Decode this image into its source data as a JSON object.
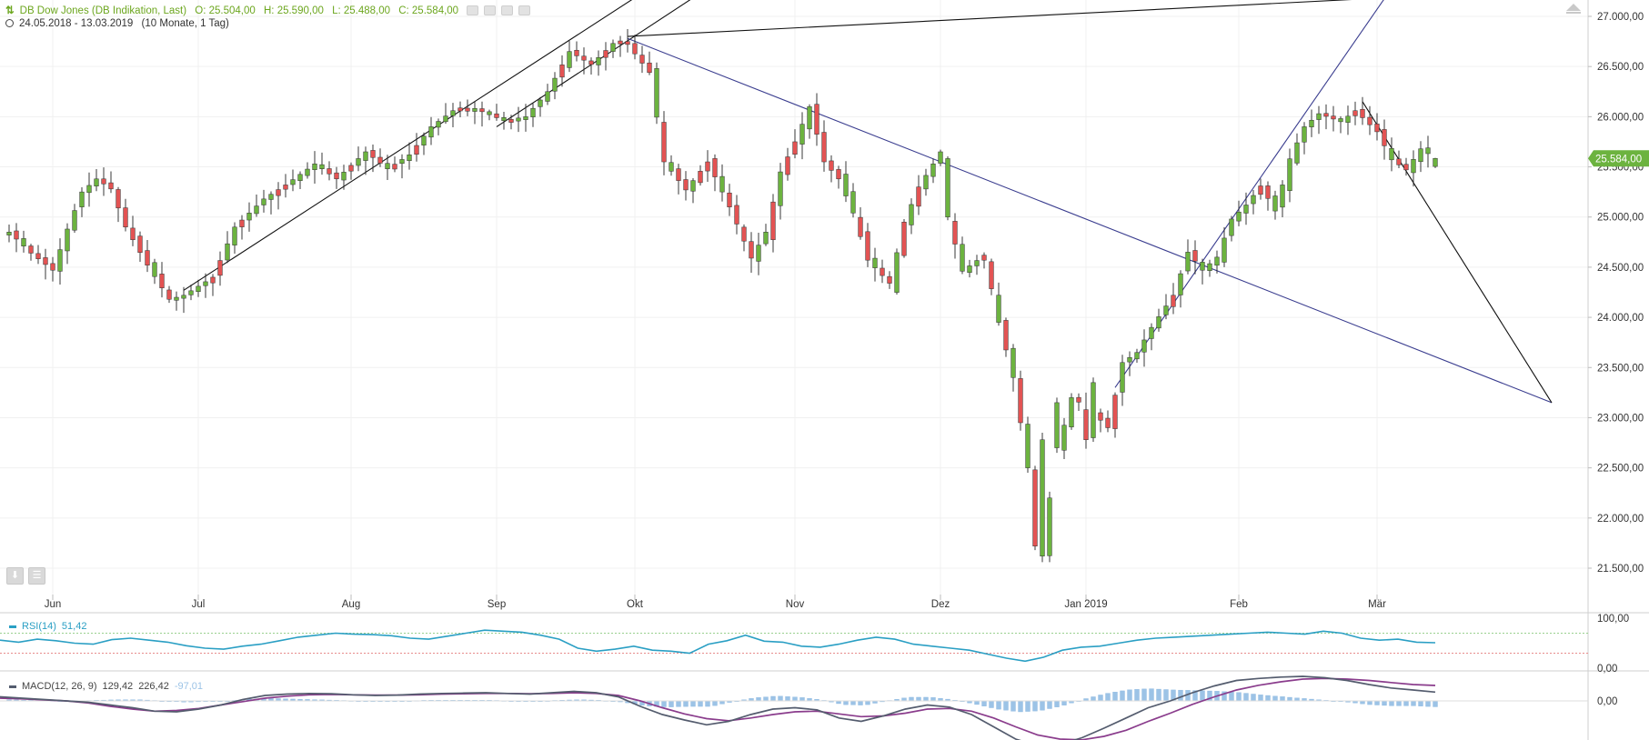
{
  "header": {
    "instrument": "DB Dow Jones (DB Indikation, Last)",
    "open": "O: 25.504,00",
    "high": "H: 25.590,00",
    "low": "L: 25.488,00",
    "close": "C: 25.584,00",
    "range": "24.05.2018 - 13.03.2019",
    "period": "(10 Monate, 1 Tag)"
  },
  "colors": {
    "up": "#6cb33f",
    "down": "#e35353",
    "rsi": "#2a9fc4",
    "macd_line": "#545c6e",
    "macd_signal": "#8a3c8c",
    "histogram": "#9cc3e6",
    "last_price": "#6cb33f"
  },
  "last_price_label": "25.584,00",
  "icons": {
    "symbol": "sort-icon",
    "clock": "clock-icon",
    "collapse": "collapse-arrow-icon",
    "download": "download-icon",
    "menu": "menu-icon"
  },
  "indicators": {
    "rsi": {
      "label": "RSI(14)",
      "value": "51,42",
      "axis": [
        "100,00",
        "0,00"
      ]
    },
    "macd": {
      "label": "MACD(12, 26, 9)",
      "macd": "129,42",
      "signal": "226,42",
      "hist": "-97,01",
      "axis": [
        "0,00"
      ]
    }
  },
  "chart_data": {
    "type": "candlestick",
    "title": "DB Dow Jones (DB Indikation, Last)",
    "y_ticks": [
      21500,
      22000,
      22500,
      23000,
      23500,
      24000,
      24500,
      25000,
      25500,
      26000,
      26500,
      27000
    ],
    "y_tick_labels": [
      "21.500,00",
      "22.000,00",
      "22.500,00",
      "23.000,00",
      "23.500,00",
      "24.000,00",
      "24.500,00",
      "25.000,00",
      "25.500,00",
      "26.000,00",
      "26.500,00",
      "27.000,00"
    ],
    "ylim": [
      21300,
      27200
    ],
    "months": [
      "Jun",
      "Jul",
      "Aug",
      "Sep",
      "Okt",
      "Nov",
      "Dez",
      "Jan 2019",
      "Feb",
      "Mär"
    ],
    "month_labels": [
      "Jun",
      "Jul",
      "Aug",
      "Sep",
      "Okt",
      "Nov",
      "Dez",
      "Jan 2019",
      "Feb",
      "Mär"
    ],
    "month_index": [
      6,
      26,
      47,
      67,
      86,
      108,
      128,
      148,
      169,
      188
    ],
    "bar_count": 197,
    "anchors": [
      [
        0,
        24850
      ],
      [
        3,
        24640
      ],
      [
        6,
        24470
      ],
      [
        8,
        24880
      ],
      [
        10,
        25250
      ],
      [
        12,
        25380
      ],
      [
        14,
        25280
      ],
      [
        16,
        24900
      ],
      [
        19,
        24520
      ],
      [
        22,
        24180
      ],
      [
        24,
        24220
      ],
      [
        28,
        24400
      ],
      [
        31,
        24900
      ],
      [
        35,
        25180
      ],
      [
        38,
        25320
      ],
      [
        42,
        25530
      ],
      [
        45,
        25380
      ],
      [
        49,
        25650
      ],
      [
        52,
        25480
      ],
      [
        55,
        25620
      ],
      [
        58,
        25900
      ],
      [
        61,
        26060
      ],
      [
        65,
        26050
      ],
      [
        68,
        25960
      ],
      [
        71,
        26000
      ],
      [
        74,
        26250
      ],
      [
        77,
        26650
      ],
      [
        80,
        26520
      ],
      [
        83,
        26730
      ],
      [
        85,
        26720
      ],
      [
        88,
        26440
      ],
      [
        90,
        25550
      ],
      [
        93,
        25270
      ],
      [
        96,
        25550
      ],
      [
        99,
        25100
      ],
      [
        102,
        24590
      ],
      [
        104,
        24850
      ],
      [
        106,
        25450
      ],
      [
        108,
        25750
      ],
      [
        110,
        26100
      ],
      [
        112,
        25550
      ],
      [
        114,
        25380
      ],
      [
        116,
        25040
      ],
      [
        118,
        24570
      ],
      [
        121,
        24340
      ],
      [
        123,
        24950
      ],
      [
        125,
        25300
      ],
      [
        127,
        25530
      ],
      [
        128,
        25650
      ],
      [
        129,
        25000
      ],
      [
        131,
        24460
      ],
      [
        134,
        24620
      ],
      [
        136,
        23950
      ],
      [
        138,
        23400
      ],
      [
        140,
        22500
      ],
      [
        142,
        21750
      ],
      [
        144,
        22650
      ],
      [
        146,
        23200
      ],
      [
        148,
        23110
      ],
      [
        149,
        23050
      ],
      [
        151,
        22900
      ],
      [
        153,
        23550
      ],
      [
        155,
        23650
      ],
      [
        157,
        23900
      ],
      [
        160,
        24220
      ],
      [
        162,
        24650
      ],
      [
        164,
        24470
      ],
      [
        166,
        24600
      ],
      [
        168,
        24980
      ],
      [
        170,
        25120
      ],
      [
        172,
        25310
      ],
      [
        174,
        25060
      ],
      [
        176,
        25580
      ],
      [
        178,
        25900
      ],
      [
        180,
        26030
      ],
      [
        183,
        25950
      ],
      [
        185,
        26060
      ],
      [
        188,
        25850
      ],
      [
        190,
        25570
      ],
      [
        192,
        25470
      ],
      [
        194,
        25680
      ],
      [
        196,
        25584
      ]
    ],
    "special_candles": [
      {
        "i": 141,
        "o": 22480,
        "c": 21720,
        "h": 22520,
        "l": 21680
      },
      {
        "i": 142,
        "o": 21620,
        "c": 22780,
        "h": 22850,
        "l": 21560
      },
      {
        "i": 144,
        "o": 22700,
        "c": 23150,
        "h": 23200,
        "l": 22650
      },
      {
        "i": 148,
        "o": 23080,
        "c": 22780,
        "h": 23250,
        "l": 22690
      },
      {
        "i": 149,
        "o": 22800,
        "c": 23350,
        "h": 23400,
        "l": 22760
      },
      {
        "i": 196,
        "o": 25504,
        "c": 25584,
        "h": 25590,
        "l": 25488
      }
    ],
    "trendlines": [
      {
        "color": "#111111",
        "points": [
          [
            24,
            24270
          ],
          [
            88,
            27280
          ]
        ]
      },
      {
        "color": "#111111",
        "points": [
          [
            67,
            25900
          ],
          [
            96,
            27280
          ]
        ]
      },
      {
        "color": "#111111",
        "points": [
          [
            85,
            26800
          ],
          [
            204,
            27240
          ]
        ]
      },
      {
        "color": "#3a3d8f",
        "points": [
          [
            85,
            26780
          ],
          [
            212,
            23150
          ]
        ]
      },
      {
        "color": "#3a3d8f",
        "points": [
          [
            152,
            23300
          ],
          [
            190,
            27280
          ]
        ]
      },
      {
        "color": "#111111",
        "points": [
          [
            186,
            26150
          ],
          [
            212,
            23150
          ]
        ]
      }
    ],
    "rsi_bands": [
      70,
      30
    ],
    "rsi_values": [
      56,
      52,
      58,
      55,
      50,
      48,
      57,
      60,
      56,
      52,
      45,
      40,
      38,
      44,
      48,
      55,
      62,
      66,
      70,
      68,
      67,
      65,
      60,
      58,
      64,
      70,
      76,
      74,
      72,
      66,
      58,
      40,
      34,
      38,
      44,
      36,
      34,
      30,
      48,
      55,
      66,
      54,
      52,
      44,
      42,
      48,
      56,
      62,
      58,
      48,
      44,
      40,
      36,
      28,
      20,
      14,
      22,
      36,
      42,
      44,
      50,
      56,
      60,
      62,
      64,
      66,
      68,
      70,
      72,
      70,
      68,
      74,
      70,
      60,
      56,
      58,
      52,
      51
    ],
    "macd_values": [
      60,
      40,
      20,
      0,
      -20,
      -60,
      -100,
      -150,
      -160,
      -120,
      -60,
      20,
      80,
      100,
      110,
      105,
      90,
      80,
      85,
      100,
      110,
      115,
      120,
      110,
      100,
      120,
      140,
      120,
      60,
      -80,
      -200,
      -280,
      -350,
      -300,
      -200,
      -120,
      -100,
      -130,
      -250,
      -300,
      -220,
      -120,
      -60,
      -90,
      -200,
      -380,
      -560,
      -660,
      -640,
      -540,
      -400,
      -250,
      -100,
      0,
      120,
      220,
      300,
      330,
      350,
      360,
      340,
      300,
      240,
      190,
      160,
      130
    ],
    "signal_values": [
      40,
      30,
      15,
      0,
      -30,
      -80,
      -120,
      -150,
      -140,
      -110,
      -60,
      -10,
      40,
      70,
      90,
      95,
      90,
      85,
      85,
      90,
      100,
      105,
      110,
      110,
      105,
      110,
      120,
      110,
      80,
      0,
      -100,
      -190,
      -260,
      -290,
      -250,
      -200,
      -160,
      -150,
      -190,
      -230,
      -220,
      -180,
      -120,
      -110,
      -150,
      -250,
      -380,
      -500,
      -560,
      -570,
      -520,
      -430,
      -300,
      -180,
      -50,
      60,
      160,
      230,
      280,
      320,
      330,
      320,
      300,
      270,
      240,
      226
    ]
  }
}
